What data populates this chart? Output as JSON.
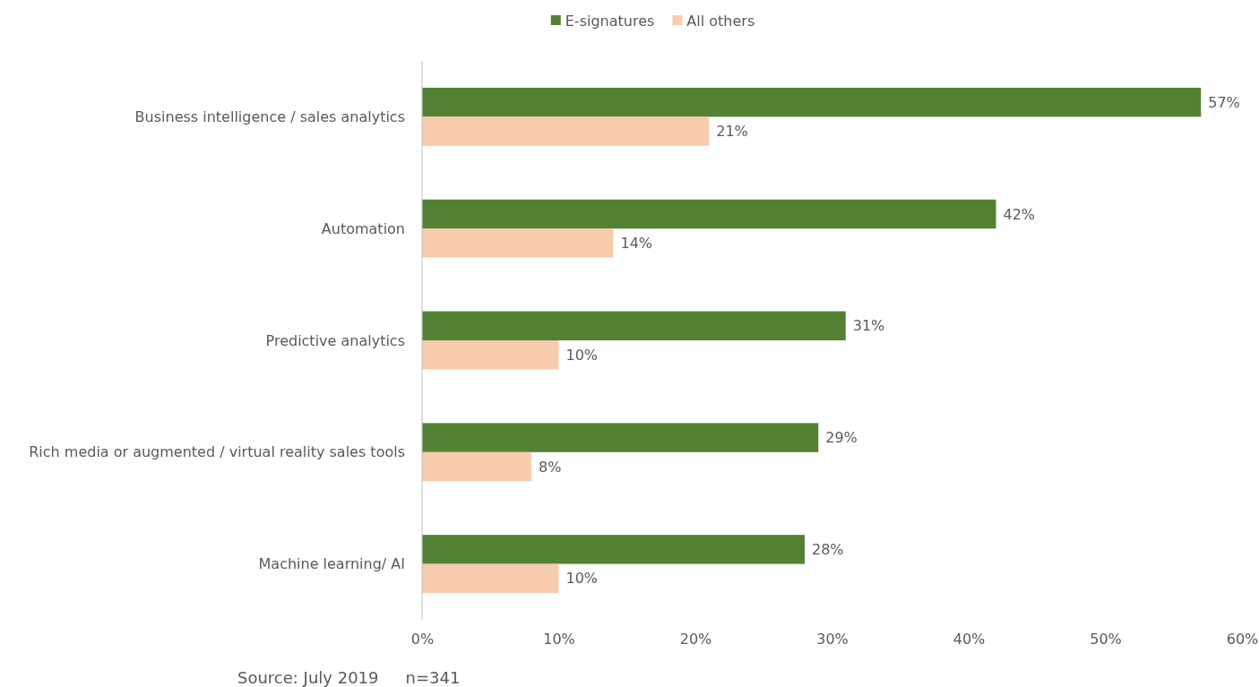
{
  "chart_data": {
    "type": "bar",
    "orientation": "horizontal",
    "categories": [
      "Business intelligence / sales analytics",
      "Automation",
      "Predictive analytics",
      "Rich media or augmented / virtual reality sales tools",
      "Machine learning/ AI"
    ],
    "series": [
      {
        "name": "E-signatures",
        "color": "#548235",
        "values": [
          57,
          42,
          31,
          29,
          28
        ],
        "value_labels": [
          "57%",
          "42%",
          "31%",
          "29%",
          "28%"
        ]
      },
      {
        "name": "All others",
        "color": "#f8cbad",
        "values": [
          21,
          14,
          10,
          8,
          10
        ],
        "value_labels": [
          "21%",
          "14%",
          "10%",
          "8%",
          "10%"
        ]
      }
    ],
    "xlim": [
      0,
      60
    ],
    "xticks": [
      {
        "value": 0,
        "label": "0%"
      },
      {
        "value": 10,
        "label": "10%"
      },
      {
        "value": 20,
        "label": "20%"
      },
      {
        "value": 30,
        "label": "30%"
      },
      {
        "value": 40,
        "label": "40%"
      },
      {
        "value": 50,
        "label": "50%"
      },
      {
        "value": 60,
        "label": "60%"
      }
    ],
    "grid": false,
    "legend": "top",
    "annotations": [
      "Source: July 2019",
      "n=341"
    ]
  }
}
